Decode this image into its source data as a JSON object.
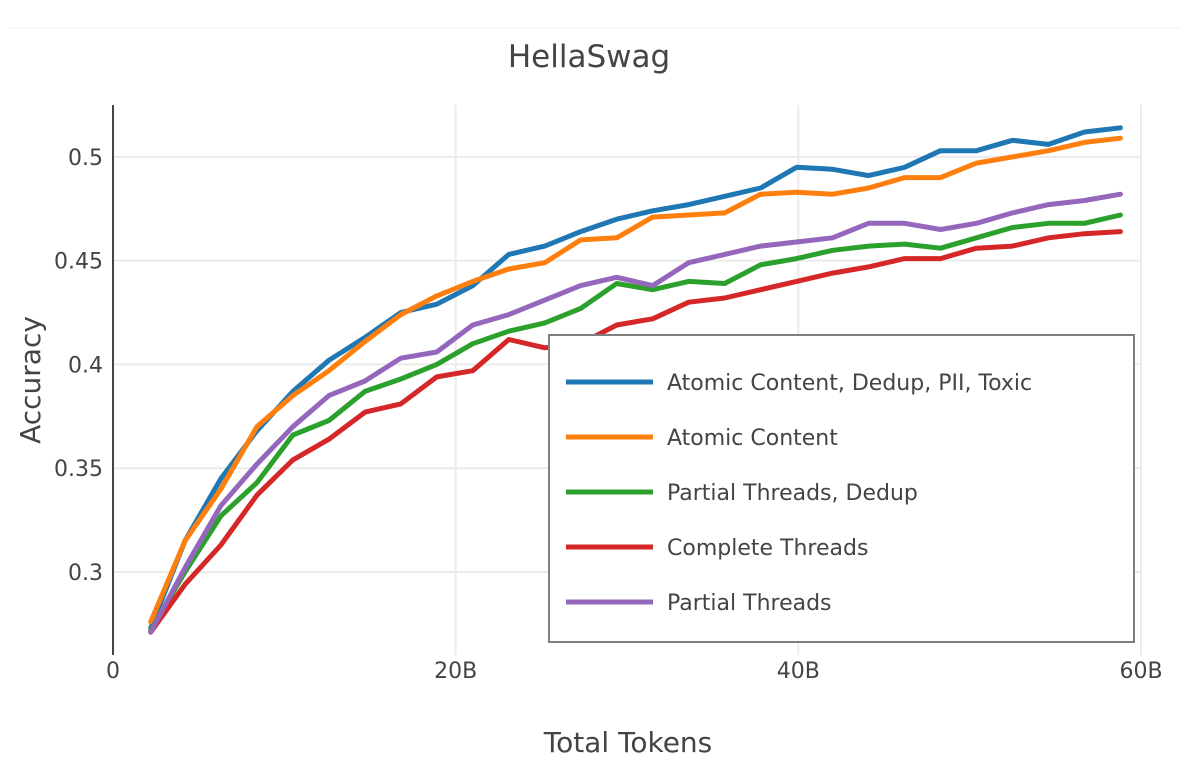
{
  "chart_data": {
    "type": "line",
    "title": "HellaSwag",
    "xlabel": "Total Tokens",
    "ylabel": "Accuracy",
    "xlim": [
      0,
      60
    ],
    "ylim": [
      0.26,
      0.525
    ],
    "x_unit": "billions of tokens",
    "x_ticks": [
      {
        "value": 0,
        "label": "0"
      },
      {
        "value": 20,
        "label": "20B"
      },
      {
        "value": 40,
        "label": "40B"
      },
      {
        "value": 60,
        "label": "60B"
      }
    ],
    "y_ticks": [
      {
        "value": 0.3,
        "label": "0.3"
      },
      {
        "value": 0.35,
        "label": "0.35"
      },
      {
        "value": 0.4,
        "label": "0.4"
      },
      {
        "value": 0.45,
        "label": "0.45"
      },
      {
        "value": 0.5,
        "label": "0.5"
      }
    ],
    "grid": true,
    "legend_position": "bottom-right",
    "x": [
      2.2,
      4.2,
      6.3,
      8.4,
      10.5,
      12.6,
      14.7,
      16.8,
      18.9,
      21.0,
      23.1,
      25.2,
      27.3,
      29.4,
      31.5,
      33.6,
      35.7,
      37.8,
      39.9,
      42.0,
      44.1,
      46.2,
      48.3,
      50.4,
      52.5,
      54.6,
      56.7,
      58.8
    ],
    "series": [
      {
        "name": "Atomic Content, Dedup, PII, Toxic",
        "color": "#1f77b4",
        "values": [
          0.273,
          0.315,
          0.345,
          0.368,
          0.387,
          0.402,
          0.413,
          0.425,
          0.429,
          0.438,
          0.453,
          0.457,
          0.464,
          0.47,
          0.474,
          0.477,
          0.481,
          0.485,
          0.495,
          0.494,
          0.491,
          0.495,
          0.503,
          0.503,
          0.508,
          0.506,
          0.512,
          0.514
        ]
      },
      {
        "name": "Atomic Content",
        "color": "#ff7f0e",
        "values": [
          0.276,
          0.315,
          0.34,
          0.37,
          0.385,
          0.397,
          0.411,
          0.424,
          0.433,
          0.44,
          0.446,
          0.449,
          0.46,
          0.461,
          0.471,
          0.472,
          0.473,
          0.482,
          0.483,
          0.482,
          0.485,
          0.49,
          0.49,
          0.497,
          0.5,
          0.503,
          0.507,
          0.509
        ]
      },
      {
        "name": "Partial Threads, Dedup",
        "color": "#2ca02c",
        "values": [
          0.272,
          0.3,
          0.327,
          0.343,
          0.366,
          0.373,
          0.387,
          0.393,
          0.4,
          0.41,
          0.416,
          0.42,
          0.427,
          0.439,
          0.436,
          0.44,
          0.439,
          0.448,
          0.451,
          0.455,
          0.457,
          0.458,
          0.456,
          0.461,
          0.466,
          0.468,
          0.468,
          0.472
        ]
      },
      {
        "name": "Complete Threads",
        "color": "#d62728",
        "values": [
          0.271,
          0.294,
          0.313,
          0.337,
          0.354,
          0.364,
          0.377,
          0.381,
          0.394,
          0.397,
          0.412,
          0.408,
          0.41,
          0.419,
          0.422,
          0.43,
          0.432,
          0.436,
          0.44,
          0.444,
          0.447,
          0.451,
          0.451,
          0.456,
          0.457,
          0.461,
          0.463,
          0.464
        ]
      },
      {
        "name": "Partial Threads",
        "color": "#9467bd",
        "values": [
          0.271,
          0.302,
          0.332,
          0.352,
          0.37,
          0.385,
          0.392,
          0.403,
          0.406,
          0.419,
          0.424,
          0.431,
          0.438,
          0.442,
          0.438,
          0.449,
          0.453,
          0.457,
          0.459,
          0.461,
          0.468,
          0.468,
          0.465,
          0.468,
          0.473,
          0.477,
          0.479,
          0.482
        ]
      }
    ]
  }
}
